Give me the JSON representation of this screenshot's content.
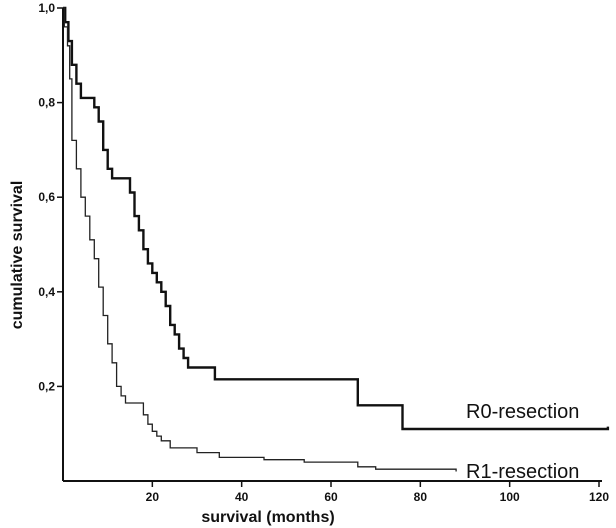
{
  "chart_data": {
    "type": "line",
    "step": true,
    "title": "",
    "xlabel": "survival (months)",
    "ylabel": "cumulative survival",
    "xlim": [
      0,
      120
    ],
    "ylim": [
      0,
      1.0
    ],
    "x_ticks": [
      {
        "value": 20,
        "label": "20"
      },
      {
        "value": 40,
        "label": "40"
      },
      {
        "value": 60,
        "label": "60"
      },
      {
        "value": 80,
        "label": "80"
      },
      {
        "value": 100,
        "label": "100"
      },
      {
        "value": 120,
        "label": "120"
      }
    ],
    "y_ticks": [
      {
        "value": 0.2,
        "label": "0,2"
      },
      {
        "value": 0.4,
        "label": "0,4"
      },
      {
        "value": 0.6,
        "label": "0,6"
      },
      {
        "value": 0.8,
        "label": "0,8"
      },
      {
        "value": 1.0,
        "label": "1,0"
      }
    ],
    "grid": false,
    "series": [
      {
        "name": "R0-resection",
        "color": "#111111",
        "line_weight": "bold",
        "points": [
          [
            0,
            1.0
          ],
          [
            0.5,
            0.97
          ],
          [
            1.2,
            0.93
          ],
          [
            2,
            0.88
          ],
          [
            3,
            0.84
          ],
          [
            4,
            0.81
          ],
          [
            7,
            0.79
          ],
          [
            8,
            0.76
          ],
          [
            9,
            0.7
          ],
          [
            10,
            0.66
          ],
          [
            11,
            0.64
          ],
          [
            15,
            0.61
          ],
          [
            16,
            0.56
          ],
          [
            17,
            0.53
          ],
          [
            18,
            0.49
          ],
          [
            19,
            0.46
          ],
          [
            20,
            0.44
          ],
          [
            21,
            0.42
          ],
          [
            22,
            0.4
          ],
          [
            23,
            0.37
          ],
          [
            24,
            0.33
          ],
          [
            25,
            0.31
          ],
          [
            26,
            0.28
          ],
          [
            27,
            0.26
          ],
          [
            28,
            0.24
          ],
          [
            34,
            0.215
          ],
          [
            66,
            0.16
          ],
          [
            76,
            0.11
          ],
          [
            122,
            0.115
          ]
        ]
      },
      {
        "name": "R1-resection",
        "color": "#222222",
        "line_weight": "thin",
        "points": [
          [
            0,
            1.0
          ],
          [
            0.3,
            0.96
          ],
          [
            1,
            0.92
          ],
          [
            1.5,
            0.85
          ],
          [
            2,
            0.72
          ],
          [
            3,
            0.66
          ],
          [
            4,
            0.6
          ],
          [
            5,
            0.56
          ],
          [
            6,
            0.51
          ],
          [
            7,
            0.47
          ],
          [
            8,
            0.41
          ],
          [
            9,
            0.35
          ],
          [
            10,
            0.29
          ],
          [
            11,
            0.25
          ],
          [
            12,
            0.2
          ],
          [
            13,
            0.18
          ],
          [
            14,
            0.165
          ],
          [
            18,
            0.14
          ],
          [
            19,
            0.12
          ],
          [
            20,
            0.105
          ],
          [
            21,
            0.095
          ],
          [
            22,
            0.085
          ],
          [
            24,
            0.07
          ],
          [
            30,
            0.06
          ],
          [
            35,
            0.05
          ],
          [
            45,
            0.045
          ],
          [
            54,
            0.04
          ],
          [
            66,
            0.03
          ],
          [
            70,
            0.025
          ],
          [
            88,
            0.02
          ]
        ]
      }
    ]
  }
}
